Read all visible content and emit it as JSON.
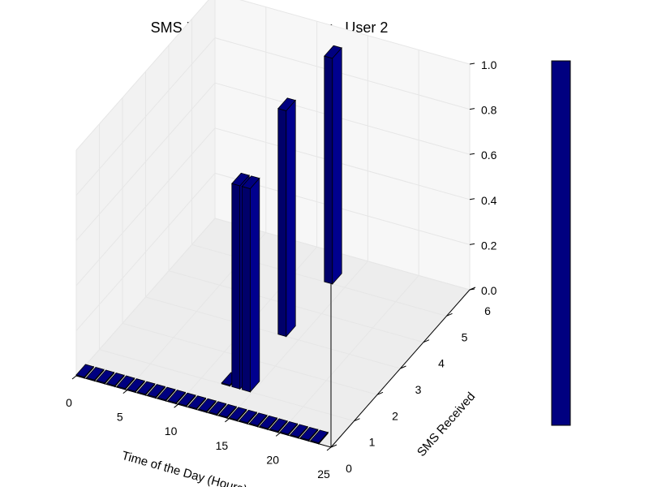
{
  "chart_data": {
    "type": "bar3d",
    "title": "SMS Received on Thursday - User 2",
    "xlabel": "Time of the Day (Hours)",
    "ylabel": "SMS Received",
    "zlabel": "",
    "x_ticks": [
      "0",
      "5",
      "10",
      "15",
      "20",
      "25"
    ],
    "y_ticks": [
      "0",
      "1",
      "2",
      "3",
      "4",
      "5",
      "6"
    ],
    "z_ticks": [
      "0.0",
      "0.2",
      "0.4",
      "0.6",
      "0.8",
      "1.0"
    ],
    "xlim": [
      0,
      25
    ],
    "ylim": [
      0,
      6
    ],
    "zlim": [
      0,
      1.0
    ],
    "bar_color": "#000080",
    "bars": [
      {
        "x": 0,
        "y": 0,
        "value": 0
      },
      {
        "x": 1,
        "y": 0,
        "value": 0
      },
      {
        "x": 2,
        "y": 0,
        "value": 0
      },
      {
        "x": 3,
        "y": 0,
        "value": 0
      },
      {
        "x": 4,
        "y": 0,
        "value": 0
      },
      {
        "x": 5,
        "y": 0,
        "value": 0
      },
      {
        "x": 6,
        "y": 0,
        "value": 0
      },
      {
        "x": 7,
        "y": 0,
        "value": 0
      },
      {
        "x": 8,
        "y": 0,
        "value": 0
      },
      {
        "x": 9,
        "y": 0,
        "value": 0
      },
      {
        "x": 10,
        "y": 0,
        "value": 0
      },
      {
        "x": 11,
        "y": 0,
        "value": 0
      },
      {
        "x": 12,
        "y": 0,
        "value": 0
      },
      {
        "x": 13,
        "y": 0,
        "value": 0
      },
      {
        "x": 14,
        "y": 0,
        "value": 0
      },
      {
        "x": 15,
        "y": 0,
        "value": 0
      },
      {
        "x": 16,
        "y": 0,
        "value": 0
      },
      {
        "x": 17,
        "y": 0,
        "value": 0
      },
      {
        "x": 18,
        "y": 0,
        "value": 0
      },
      {
        "x": 19,
        "y": 0,
        "value": 0
      },
      {
        "x": 20,
        "y": 0,
        "value": 0
      },
      {
        "x": 21,
        "y": 0,
        "value": 0
      },
      {
        "x": 22,
        "y": 0,
        "value": 0
      },
      {
        "x": 23,
        "y": 0,
        "value": 0
      },
      {
        "x": 12,
        "y": 1,
        "value": 0
      },
      {
        "x": 13,
        "y": 1,
        "value": 0.9
      },
      {
        "x": 14,
        "y": 1,
        "value": 0.9
      },
      {
        "x": 13,
        "y": 3,
        "value": 1.0
      },
      {
        "x": 13,
        "y": 5,
        "value": 1.0
      }
    ],
    "colorbar": {
      "color": "#000080"
    },
    "grid": true
  }
}
